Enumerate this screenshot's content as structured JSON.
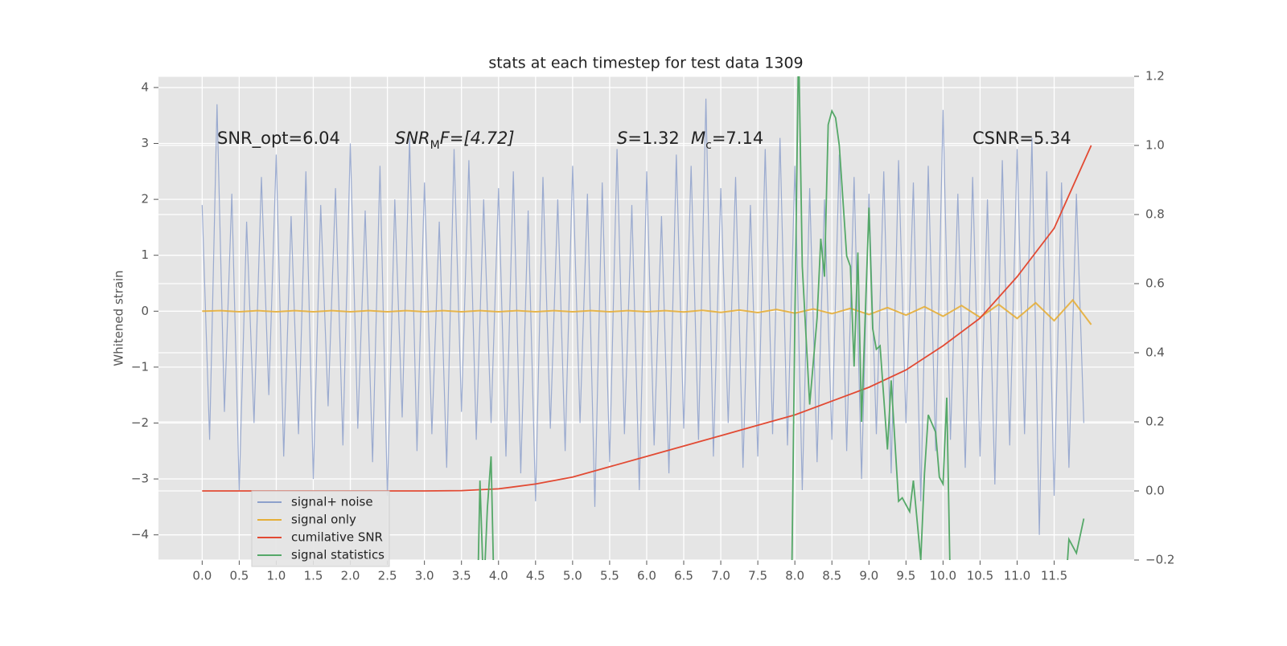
{
  "chart_data": {
    "type": "line",
    "title": "stats at each timestep for test data 1309",
    "ylabel": "Whitened strain",
    "xlim": [
      -0.59,
      12.58
    ],
    "ylim": [
      -4.45,
      4.2
    ],
    "y2lim": [
      -0.2,
      1.2
    ],
    "xticks": [
      {
        "value": 0,
        "label": "0.0"
      },
      {
        "value": 0.5,
        "label": "0.5"
      },
      {
        "value": 1,
        "label": "1.0"
      },
      {
        "value": 1.5,
        "label": "1.5"
      },
      {
        "value": 2,
        "label": "2.0"
      },
      {
        "value": 2.5,
        "label": "2.5"
      },
      {
        "value": 3,
        "label": "3.0"
      },
      {
        "value": 3.5,
        "label": "3.5"
      },
      {
        "value": 4,
        "label": "4.0"
      },
      {
        "value": 4.5,
        "label": "4.5"
      },
      {
        "value": 5,
        "label": "5.0"
      },
      {
        "value": 5.5,
        "label": "5.5"
      },
      {
        "value": 6,
        "label": "6.0"
      },
      {
        "value": 6.5,
        "label": "6.5"
      },
      {
        "value": 7,
        "label": "7.0"
      },
      {
        "value": 7.5,
        "label": "7.5"
      },
      {
        "value": 8,
        "label": "8.0"
      },
      {
        "value": 8.5,
        "label": "8.5"
      },
      {
        "value": 9,
        "label": "9.0"
      },
      {
        "value": 9.5,
        "label": "9.5"
      },
      {
        "value": 10,
        "label": "10.0"
      },
      {
        "value": 10.5,
        "label": "10.5"
      },
      {
        "value": 11,
        "label": "11.0"
      },
      {
        "value": 11.5,
        "label": "11.5"
      }
    ],
    "yticks": [
      {
        "value": -4,
        "label": "−4"
      },
      {
        "value": -3,
        "label": "−3"
      },
      {
        "value": -2,
        "label": "−2"
      },
      {
        "value": -1,
        "label": "−1"
      },
      0,
      1,
      2,
      3,
      4
    ],
    "y2ticks": [
      {
        "value": -0.2,
        "label": "−0.2"
      },
      {
        "value": 0,
        "label": "0.0"
      },
      {
        "value": 0.2,
        "label": "0.2"
      },
      {
        "value": 0.4,
        "label": "0.4"
      },
      {
        "value": 0.6,
        "label": "0.6"
      },
      {
        "value": 0.8,
        "label": "0.8"
      },
      {
        "value": 1,
        "label": "1.0"
      },
      {
        "value": 1.2,
        "label": "1.2"
      }
    ],
    "grid": true,
    "legend": "lower left",
    "annotations": [
      [
        "SNR_opt=6.04"
      ],
      [
        "SNR",
        "M",
        "F=[4.72]"
      ],
      [
        "S",
        "=1.32"
      ],
      [
        "M",
        "c",
        "=7.14"
      ],
      [
        "CSNR=5.34"
      ]
    ],
    "series": [
      {
        "name": "signal+ noise",
        "color": "#8da0cb",
        "x": [
          0.0,
          0.1,
          0.2,
          0.3,
          0.4,
          0.5,
          0.6,
          0.7,
          0.8,
          0.9,
          1.0,
          1.1,
          1.2,
          1.3,
          1.4,
          1.5,
          1.6,
          1.7,
          1.8,
          1.9,
          2.0,
          2.1,
          2.2,
          2.3,
          2.4,
          2.5,
          2.6,
          2.7,
          2.8,
          2.9,
          3.0,
          3.1,
          3.2,
          3.3,
          3.4,
          3.5,
          3.6,
          3.7,
          3.8,
          3.9,
          4.0,
          4.1,
          4.2,
          4.3,
          4.4,
          4.5,
          4.6,
          4.7,
          4.8,
          4.9,
          5.0,
          5.1,
          5.2,
          5.3,
          5.4,
          5.5,
          5.6,
          5.7,
          5.8,
          5.9,
          6.0,
          6.1,
          6.2,
          6.3,
          6.4,
          6.5,
          6.6,
          6.7,
          6.8,
          6.9,
          7.0,
          7.1,
          7.2,
          7.3,
          7.4,
          7.5,
          7.6,
          7.7,
          7.8,
          7.9,
          8.0,
          8.1,
          8.2,
          8.3,
          8.4,
          8.5,
          8.6,
          8.7,
          8.8,
          8.9,
          9.0,
          9.1,
          9.2,
          9.3,
          9.4,
          9.5,
          9.6,
          9.7,
          9.8,
          9.9,
          10.0,
          10.1,
          10.2,
          10.3,
          10.4,
          10.5,
          10.6,
          10.7,
          10.8,
          10.9,
          11.0,
          11.1,
          11.2,
          11.3,
          11.4,
          11.5,
          11.6,
          11.7,
          11.8,
          11.9
        ],
        "values": [
          1.9,
          -2.3,
          3.7,
          -1.8,
          2.1,
          -3.2,
          1.6,
          -2.0,
          2.4,
          -1.5,
          2.8,
          -2.6,
          1.7,
          -2.2,
          2.5,
          -3.0,
          1.9,
          -1.7,
          2.2,
          -2.4,
          3.0,
          -2.1,
          1.8,
          -2.7,
          2.6,
          -3.3,
          2.0,
          -1.9,
          3.1,
          -2.5,
          2.3,
          -2.2,
          1.6,
          -2.8,
          2.9,
          -1.8,
          2.7,
          -2.3,
          2.0,
          -2.0,
          2.2,
          -2.6,
          2.5,
          -2.9,
          1.8,
          -3.4,
          2.4,
          -2.1,
          2.0,
          -2.5,
          2.6,
          -2.0,
          2.1,
          -3.5,
          2.3,
          -2.7,
          2.9,
          -2.2,
          1.9,
          -3.2,
          2.5,
          -2.4,
          1.7,
          -2.9,
          2.8,
          -2.1,
          2.6,
          -2.3,
          3.8,
          -2.6,
          2.2,
          -2.0,
          2.4,
          -2.8,
          1.9,
          -2.6,
          2.9,
          -2.2,
          3.1,
          -2.4,
          2.6,
          -3.2,
          2.2,
          -2.7,
          2.0,
          -2.3,
          2.8,
          -2.5,
          2.4,
          -3.0,
          2.1,
          -2.2,
          2.5,
          -2.9,
          2.7,
          -2.0,
          2.3,
          -3.4,
          2.6,
          -2.5,
          3.6,
          -2.3,
          2.1,
          -2.8,
          2.4,
          -2.6,
          2.0,
          -3.1,
          2.7,
          -2.4,
          2.9,
          -2.2,
          3.1,
          -4.0,
          2.5,
          -3.3,
          2.3,
          -2.8,
          2.1,
          -2.0
        ]
      },
      {
        "name": "signal only",
        "color": "#e5ae38",
        "x": [
          0,
          0.25,
          0.5,
          0.75,
          1,
          1.25,
          1.5,
          1.75,
          2,
          2.25,
          2.5,
          2.75,
          3,
          3.25,
          3.5,
          3.75,
          4,
          4.25,
          4.5,
          4.75,
          5,
          5.25,
          5.5,
          5.75,
          6,
          6.25,
          6.5,
          6.75,
          7,
          7.25,
          7.5,
          7.75,
          8,
          8.25,
          8.5,
          8.75,
          9,
          9.25,
          9.5,
          9.75,
          10,
          10.25,
          10.5,
          10.75,
          11,
          11.25,
          11.5,
          11.75,
          12
        ],
        "values": [
          0,
          0.01,
          -0.01,
          0.01,
          -0.01,
          0.01,
          -0.01,
          0.01,
          -0.01,
          0.01,
          -0.01,
          0.01,
          -0.01,
          0.01,
          -0.01,
          0.01,
          -0.01,
          0.01,
          -0.01,
          0.01,
          -0.01,
          0.01,
          -0.01,
          0.01,
          -0.01,
          0.01,
          -0.015,
          0.015,
          -0.02,
          0.02,
          -0.025,
          0.03,
          -0.035,
          0.04,
          -0.045,
          0.05,
          -0.06,
          0.065,
          -0.07,
          0.08,
          -0.09,
          0.1,
          -0.11,
          0.12,
          -0.13,
          0.15,
          -0.17,
          0.2,
          -0.24
        ]
      },
      {
        "name": "cumilative SNR",
        "color": "#e24a33",
        "axis": "y2",
        "x": [
          0,
          0.5,
          1,
          1.5,
          2,
          2.5,
          3,
          3.5,
          4,
          4.5,
          5,
          5.5,
          6,
          6.5,
          7,
          7.5,
          8,
          8.5,
          9,
          9.5,
          10,
          10.5,
          11,
          11.5,
          12
        ],
        "values": [
          0,
          0,
          0,
          0,
          0,
          0,
          0,
          0.001,
          0.006,
          0.02,
          0.04,
          0.07,
          0.1,
          0.13,
          0.16,
          0.19,
          0.22,
          0.26,
          0.3,
          0.35,
          0.42,
          0.5,
          0.62,
          0.76,
          1.0
        ]
      },
      {
        "name": "signal statistics",
        "color": "#55a868",
        "axis": "y2",
        "x": [
          3.7,
          3.75,
          3.8,
          3.85,
          3.9,
          3.95,
          7.95,
          8.0,
          8.05,
          8.1,
          8.2,
          8.3,
          8.35,
          8.4,
          8.45,
          8.5,
          8.55,
          8.6,
          8.7,
          8.75,
          8.8,
          8.85,
          8.9,
          9.0,
          9.05,
          9.1,
          9.15,
          9.25,
          9.3,
          9.4,
          9.45,
          9.55,
          9.6,
          9.7,
          9.75,
          9.8,
          9.9,
          9.95,
          10.0,
          10.05,
          10.1,
          11.65,
          11.7,
          11.8,
          11.9
        ],
        "values": [
          -0.5,
          0.03,
          -0.3,
          -0.05,
          0.1,
          -0.4,
          -0.4,
          0.5,
          1.3,
          0.65,
          0.25,
          0.5,
          0.73,
          0.62,
          1.06,
          1.1,
          1.08,
          1.0,
          0.68,
          0.65,
          0.36,
          0.69,
          0.2,
          0.82,
          0.47,
          0.41,
          0.42,
          0.12,
          0.32,
          -0.03,
          -0.02,
          -0.06,
          0.03,
          -0.2,
          0.05,
          0.22,
          0.17,
          0.04,
          0.02,
          0.27,
          -0.3,
          -0.3,
          -0.14,
          -0.18,
          -0.08
        ]
      }
    ]
  }
}
